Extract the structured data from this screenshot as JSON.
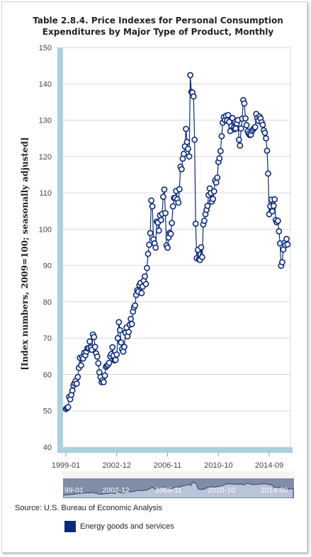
{
  "chart_data": {
    "type": "line",
    "title_line1": "Table 2.8.4. Price Indexes for Personal Consumption",
    "title_line2": "Expenditures by Major Type of Product, Monthly",
    "ylabel": "[Index numbers, 2009=100; seasonally adjusted]",
    "ylim": [
      40,
      150
    ],
    "yticks": [
      40,
      50,
      60,
      70,
      80,
      90,
      100,
      110,
      120,
      130,
      140,
      150
    ],
    "xticks": [
      "1999-01",
      "2002-12",
      "2006-11",
      "2010-10",
      "2014-09"
    ],
    "navigator_ticks": [
      "99-01",
      "2002-12",
      "2006-11",
      "2010-10",
      "2014-09"
    ],
    "grid": true,
    "legend_position": "bottom",
    "series": [
      {
        "name": "Energy goods and services",
        "color": "#0b2a7d",
        "start": "1999-01",
        "values": [
          50.5,
          50.8,
          51.0,
          53.8,
          53.2,
          54.4,
          55.6,
          57.0,
          57.6,
          58.2,
          57.5,
          59.3,
          61.8,
          64.6,
          62.5,
          64.8,
          64.4,
          66.0,
          65.3,
          66.3,
          67.2,
          67.3,
          69.1,
          67.4,
          66.8,
          71.0,
          70.3,
          67.6,
          65.8,
          64.9,
          63.1,
          60.6,
          59.3,
          57.9,
          58.4,
          57.9,
          59.7,
          62.1,
          62.4,
          62.7,
          63.2,
          65.0,
          65.6,
          67.5,
          65.2,
          63.9,
          64.0,
          65.5,
          70.0,
          74.4,
          72.2,
          68.8,
          67.0,
          66.3,
          67.6,
          71.5,
          72.9,
          70.5,
          71.7,
          73.7,
          75.3,
          73.9,
          77.3,
          78.5,
          79.0,
          81.9,
          83.2,
          82.8,
          84.6,
          85.2,
          82.4,
          84.2,
          85.8,
          87.0,
          84.9,
          89.3,
          93.2,
          95.7,
          98.9,
          107.9,
          106.3,
          97.2,
          96.1,
          94.9,
          102.1,
          101.8,
          99.6,
          103.8,
          102.5,
          104.2,
          108.9,
          110.9,
          104.4,
          95.5,
          94.9,
          97.7,
          99.0,
          98.7,
          101.7,
          106.3,
          108.6,
          108.6,
          110.5,
          108.2,
          107.3,
          111.0,
          117.2,
          116.5,
          119.4,
          120.7,
          122.8,
          127.6,
          124.0,
          122.1,
          120.0,
          142.4,
          137.8,
          137.6,
          136.5,
          124.6,
          101.5,
          92.0,
          94.3,
          91.7,
          91.5,
          95.0,
          92.3,
          101.3,
          102.3,
          104.1,
          105.3,
          106.4,
          109.4,
          111.2,
          109.9,
          107.6,
          108.3,
          110.4,
          113.4,
          112.8,
          114.2,
          118.5,
          119.5,
          121.5,
          125.6,
          129.3,
          130.8,
          130.0,
          131.2,
          129.9,
          131.4,
          129.5,
          127.0,
          128.3,
          130.6,
          127.9,
          127.5,
          127.7,
          129.1,
          130.0,
          124.6,
          123.0,
          127.7,
          130.4,
          135.5,
          134.6,
          130.5,
          128.6,
          126.9,
          126.3,
          125.9,
          126.0,
          127.0,
          127.4,
          127.8,
          128.1,
          131.7,
          130.6,
          129.8,
          131.0,
          130.5,
          129.4,
          128.7,
          127.2,
          126.5,
          125.0,
          121.6,
          115.3,
          104.1,
          106.3,
          108.1,
          104.9,
          106.4,
          108.2,
          102.5,
          101.9,
          102.3,
          99.4,
          96.1,
          89.9,
          90.9,
          94.4,
          96.2,
          95.6,
          97.3,
          95.8
        ]
      }
    ]
  },
  "source": "Source: U.S. Bureau of Economic Analysis"
}
